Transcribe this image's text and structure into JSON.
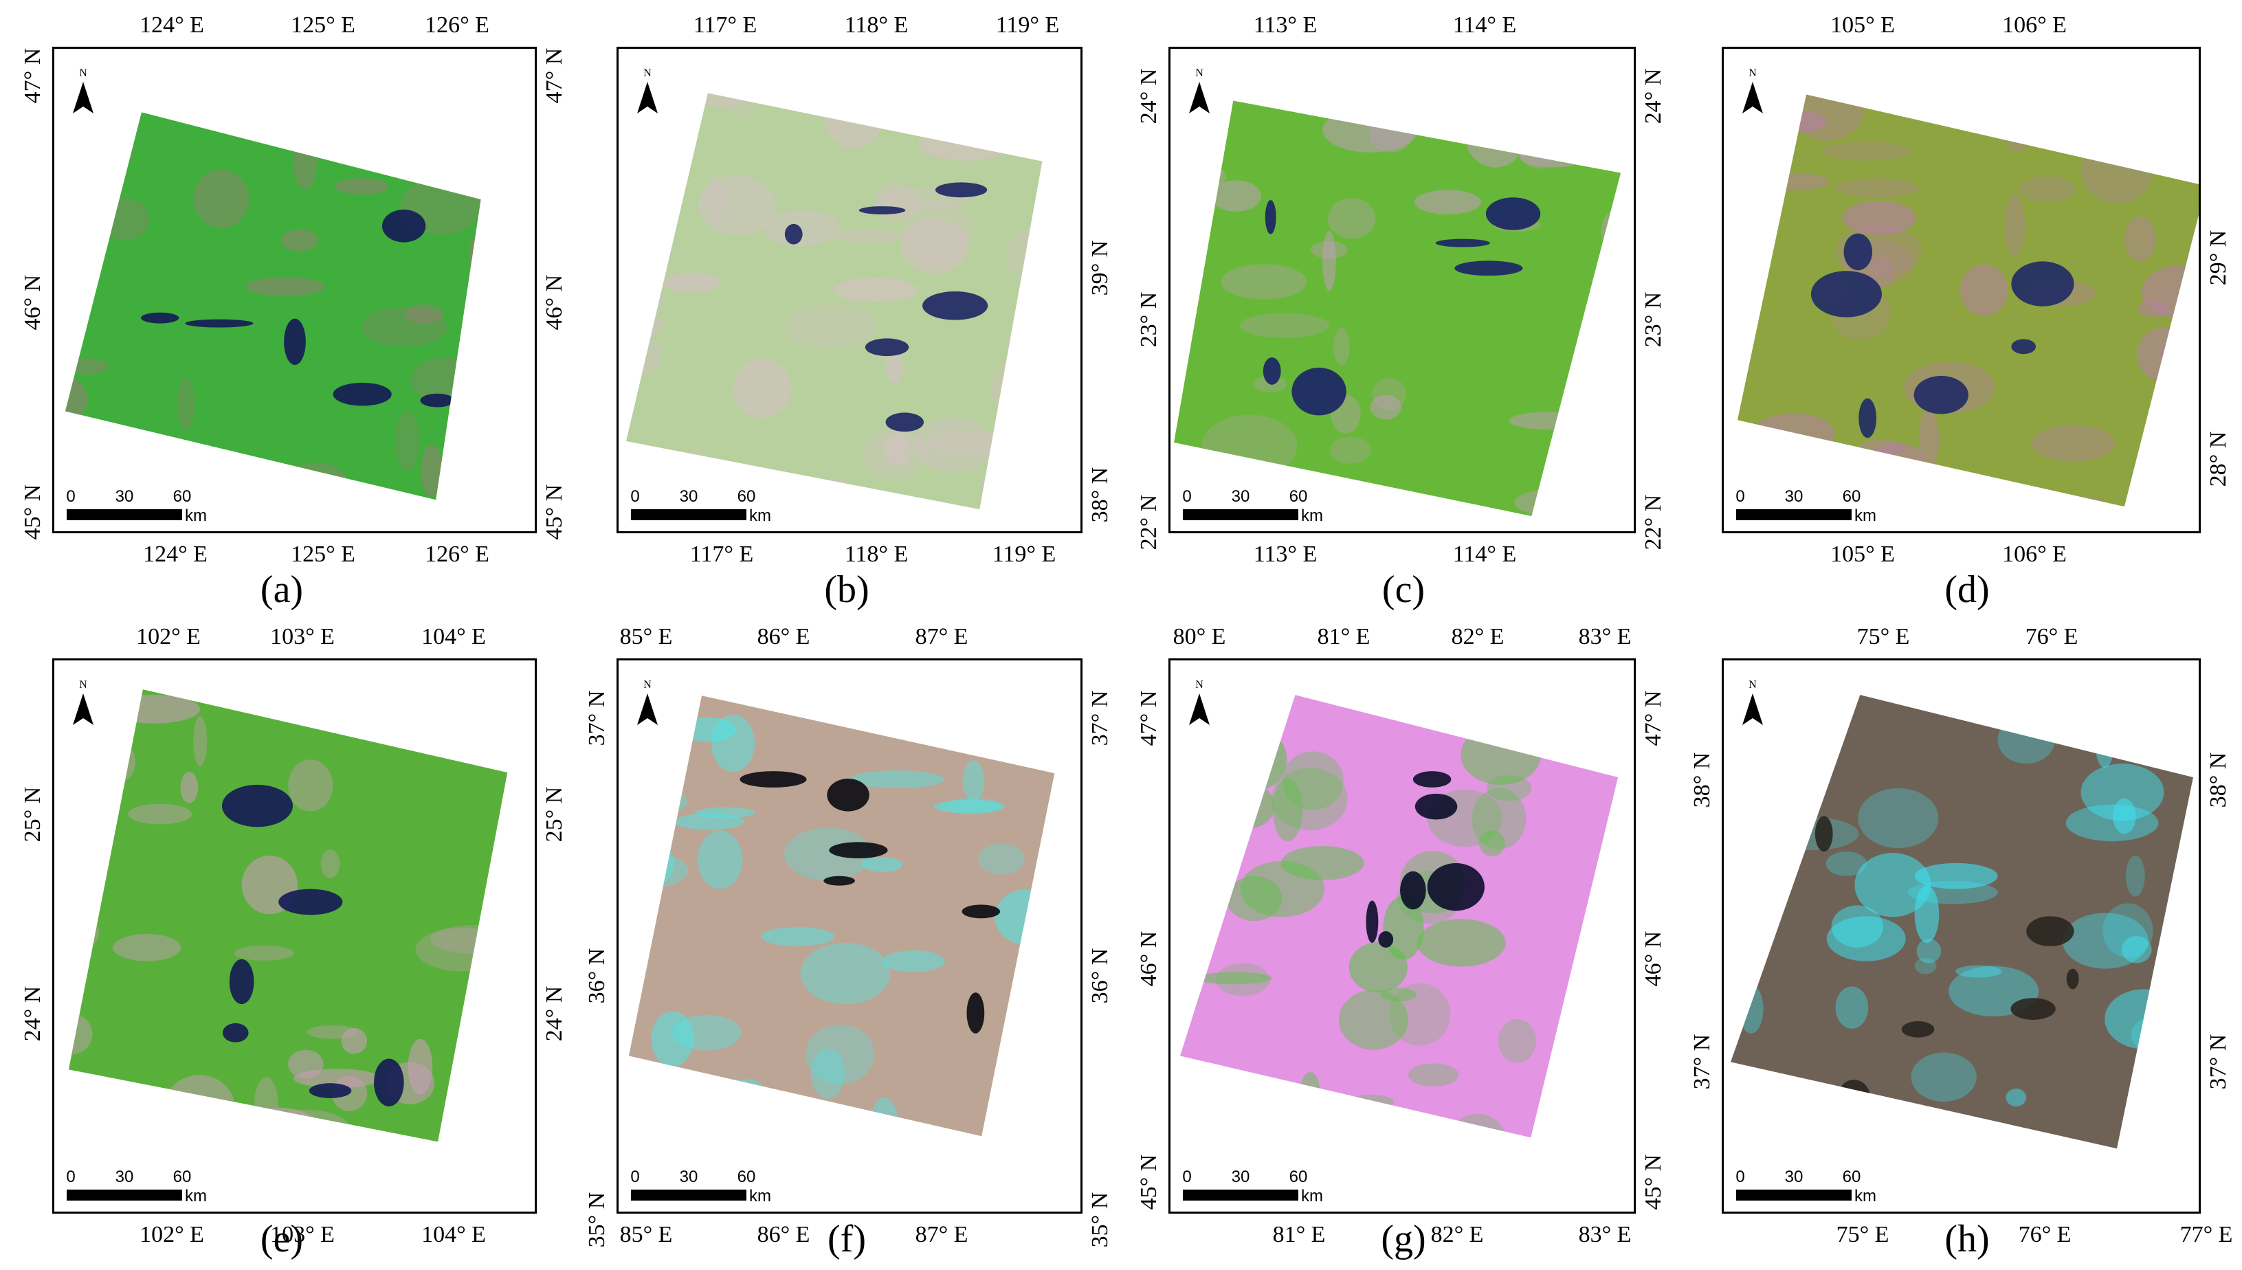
{
  "figure": {
    "panels": [
      {
        "id": "a",
        "caption": "(a)",
        "top_ticks": [
          "124° E",
          "125° E",
          "126° E"
        ],
        "bottom_ticks": [
          "124° E",
          "125° E",
          "126° E"
        ],
        "left_ticks": [
          "47° N",
          "46° N",
          "45° N"
        ],
        "right_ticks": [
          "47° N",
          "46° N",
          "45° N"
        ],
        "north_label": "N",
        "scale": {
          "labels": [
            "0",
            "30",
            "60"
          ],
          "unit": "km"
        },
        "colors": {
          "land": "#3fae3c",
          "water": "#141a55",
          "accent": "#a07a7a"
        }
      },
      {
        "id": "b",
        "caption": "(b)",
        "top_ticks": [
          "117° E",
          "118° E",
          "119° E"
        ],
        "bottom_ticks": [
          "117° E",
          "118° E",
          "119° E"
        ],
        "left_ticks": [],
        "right_ticks": [
          "39° N",
          "38° N"
        ],
        "north_label": "N",
        "scale": {
          "labels": [
            "0",
            "30",
            "60"
          ],
          "unit": "km"
        },
        "colors": {
          "land": "#b8cf9e",
          "water": "#1d2563",
          "accent": "#d7c0c8"
        }
      },
      {
        "id": "c",
        "caption": "(c)",
        "top_ticks": [
          "113° E",
          "114° E"
        ],
        "bottom_ticks": [
          "113° E",
          "114° E"
        ],
        "left_ticks": [
          "24° N",
          "23° N",
          "22° N"
        ],
        "right_ticks": [
          "24° N",
          "23° N",
          "22° N"
        ],
        "north_label": "N",
        "scale": {
          "labels": [
            "0",
            "30",
            "60"
          ],
          "unit": "km"
        },
        "colors": {
          "land": "#67b838",
          "water": "#1a2266",
          "accent": "#c49cc0"
        }
      },
      {
        "id": "d",
        "caption": "(d)",
        "top_ticks": [
          "105° E",
          "106° E"
        ],
        "bottom_ticks": [
          "105° E",
          "106° E"
        ],
        "left_ticks": [],
        "right_ticks": [
          "29° N",
          "28° N"
        ],
        "north_label": "N",
        "scale": {
          "labels": [
            "0",
            "30",
            "60"
          ],
          "unit": "km"
        },
        "colors": {
          "land": "#8ea440",
          "water": "#1f2a66",
          "accent": "#b77fa6"
        }
      },
      {
        "id": "e",
        "caption": "(e)",
        "top_ticks": [
          "102° E",
          "103° E",
          "104° E"
        ],
        "bottom_ticks": [
          "102° E",
          "103° E",
          "104° E"
        ],
        "left_ticks": [
          "25° N",
          "24° N"
        ],
        "right_ticks": [
          "25° N",
          "24° N"
        ],
        "north_label": "N",
        "scale": {
          "labels": [
            "0",
            "30",
            "60"
          ],
          "unit": "km"
        },
        "colors": {
          "land": "#58b03a",
          "water": "#141a55",
          "accent": "#c99cb8"
        }
      },
      {
        "id": "f",
        "caption": "(f)",
        "top_ticks": [
          "85° E",
          "86° E",
          "87° E"
        ],
        "bottom_ticks": [
          "85° E",
          "86° E",
          "87° E"
        ],
        "left_ticks": [
          "37° N",
          "36° N",
          "35° N"
        ],
        "right_ticks": [
          "37° N",
          "36° N",
          "35° N"
        ],
        "north_label": "N",
        "scale": {
          "labels": [
            "0",
            "30",
            "60"
          ],
          "unit": "km"
        },
        "colors": {
          "land": "#bca594",
          "water": "#0a0a12",
          "accent": "#4ee6e6"
        }
      },
      {
        "id": "g",
        "caption": "(g)",
        "top_ticks": [
          "80° E",
          "81° E",
          "82° E",
          "83° E"
        ],
        "bottom_ticks": [
          "81° E",
          "82° E",
          "83° E"
        ],
        "left_ticks": [
          "47° N",
          "46° N",
          "45° N"
        ],
        "right_ticks": [
          "47° N",
          "46° N",
          "45° N"
        ],
        "north_label": "N",
        "scale": {
          "labels": [
            "0",
            "30",
            "60"
          ],
          "unit": "km"
        },
        "colors": {
          "land": "#e394e3",
          "water": "#0b0d2a",
          "accent": "#5fc04a"
        }
      },
      {
        "id": "h",
        "caption": "(h)",
        "top_ticks": [
          "75° E",
          "76° E"
        ],
        "bottom_ticks": [
          "75° E",
          "76° E",
          "77° E"
        ],
        "left_ticks": [
          "38° N",
          "37° N"
        ],
        "right_ticks": [
          "38° N",
          "37° N"
        ],
        "north_label": "N",
        "scale": {
          "labels": [
            "0",
            "30",
            "60"
          ],
          "unit": "km"
        },
        "colors": {
          "land": "#6e6256",
          "water": "#2a2620",
          "accent": "#3de3f2"
        }
      }
    ]
  }
}
